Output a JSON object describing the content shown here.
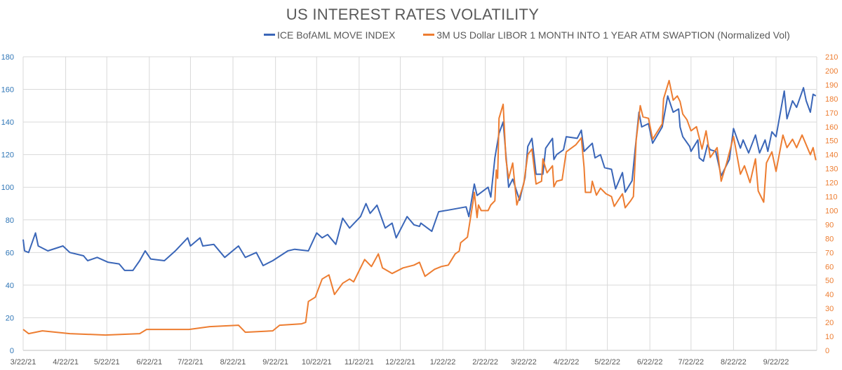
{
  "chart_data": {
    "type": "line",
    "title": "US INTEREST RATES VOLATILITY",
    "legend_position": "top-right",
    "grid": true,
    "x_axis": {
      "tick_labels": [
        "3/22/21",
        "4/22/21",
        "5/22/21",
        "6/22/21",
        "7/22/21",
        "8/22/21",
        "9/22/21",
        "10/22/21",
        "11/22/21",
        "12/22/21",
        "1/22/22",
        "2/22/22",
        "3/22/22",
        "4/22/22",
        "5/22/22",
        "6/22/22",
        "7/22/22",
        "8/22/22",
        "9/22/22"
      ]
    },
    "y_axis_left": {
      "range": [
        0,
        180
      ],
      "ticks": [
        "0",
        "20",
        "40",
        "60",
        "80",
        "100",
        "120",
        "140",
        "160",
        "180"
      ],
      "color": "#2e75b6"
    },
    "y_axis_right": {
      "range": [
        0,
        210
      ],
      "ticks": [
        "0",
        "10",
        "20",
        "30",
        "40",
        "50",
        "60",
        "70",
        "80",
        "90",
        "100",
        "110",
        "120",
        "130",
        "140",
        "150",
        "160",
        "170",
        "180",
        "190",
        "200",
        "210"
      ],
      "color": "#ed7d31"
    },
    "series": [
      {
        "name": "ICE BofAML MOVE INDEX",
        "axis": "left",
        "color": "#3a66b8",
        "points": [
          [
            "3/22/21",
            68
          ],
          [
            "3/23/21",
            61
          ],
          [
            "3/26/21",
            60
          ],
          [
            "3/31/21",
            72
          ],
          [
            "4/2/21",
            64
          ],
          [
            "4/9/21",
            61
          ],
          [
            "4/20/21",
            64
          ],
          [
            "4/25/21",
            60
          ],
          [
            "5/5/21",
            58
          ],
          [
            "5/8/21",
            55
          ],
          [
            "5/15/21",
            57
          ],
          [
            "5/23/21",
            54
          ],
          [
            "5/31/21",
            53
          ],
          [
            "6/4/21",
            49
          ],
          [
            "6/10/21",
            49
          ],
          [
            "6/15/21",
            55
          ],
          [
            "6/19/21",
            61
          ],
          [
            "6/23/21",
            56
          ],
          [
            "7/3/21",
            55
          ],
          [
            "7/11/21",
            61
          ],
          [
            "7/20/21",
            69
          ],
          [
            "7/22/21",
            64
          ],
          [
            "7/29/21",
            69
          ],
          [
            "7/31/21",
            64
          ],
          [
            "8/8/21",
            65
          ],
          [
            "8/16/21",
            57
          ],
          [
            "8/26/21",
            64
          ],
          [
            "8/31/21",
            57
          ],
          [
            "9/8/21",
            60
          ],
          [
            "9/13/21",
            52
          ],
          [
            "9/20/21",
            55
          ],
          [
            "10/1/21",
            61
          ],
          [
            "10/6/21",
            62
          ],
          [
            "10/16/21",
            61
          ],
          [
            "10/22/21",
            72
          ],
          [
            "10/26/21",
            69
          ],
          [
            "10/30/21",
            71
          ],
          [
            "11/5/21",
            65
          ],
          [
            "11/10/21",
            81
          ],
          [
            "11/15/21",
            75
          ],
          [
            "11/23/21",
            82
          ],
          [
            "11/27/21",
            90
          ],
          [
            "11/30/21",
            84
          ],
          [
            "12/5/21",
            89
          ],
          [
            "12/11/21",
            75
          ],
          [
            "12/16/21",
            78
          ],
          [
            "12/19/21",
            69
          ],
          [
            "12/27/21",
            82
          ],
          [
            "1/1/22",
            77
          ],
          [
            "1/5/22",
            76
          ],
          [
            "1/6/22",
            78
          ],
          [
            "1/14/22",
            73
          ],
          [
            "1/19/22",
            85
          ],
          [
            "1/26/22",
            86
          ],
          [
            "2/8/22",
            88
          ],
          [
            "2/10/22",
            82
          ],
          [
            "2/14/22",
            102
          ],
          [
            "2/16/22",
            95
          ],
          [
            "2/24/22",
            100
          ],
          [
            "2/26/22",
            94
          ],
          [
            "3/1/22",
            118
          ],
          [
            "3/4/22",
            133
          ],
          [
            "3/7/22",
            140
          ],
          [
            "3/11/22",
            100
          ],
          [
            "3/14/22",
            105
          ],
          [
            "3/19/22",
            92
          ],
          [
            "3/23/22",
            106
          ],
          [
            "3/25/22",
            125
          ],
          [
            "3/28/22",
            130
          ],
          [
            "3/31/22",
            108
          ],
          [
            "4/5/22",
            108
          ],
          [
            "4/7/22",
            124
          ],
          [
            "4/12/22",
            130
          ],
          [
            "4/13/22",
            117
          ],
          [
            "4/15/22",
            120
          ],
          [
            "4/20/22",
            123
          ],
          [
            "4/22/22",
            131
          ],
          [
            "4/30/22",
            130
          ],
          [
            "5/3/22",
            135
          ],
          [
            "5/5/22",
            122
          ],
          [
            "5/11/22",
            127
          ],
          [
            "5/13/22",
            118
          ],
          [
            "5/17/22",
            120
          ],
          [
            "5/20/22",
            112
          ],
          [
            "5/25/22",
            111
          ],
          [
            "5/28/22",
            99
          ],
          [
            "6/2/22",
            109
          ],
          [
            "6/4/22",
            97
          ],
          [
            "6/9/22",
            104
          ],
          [
            "6/11/22",
            121
          ],
          [
            "6/14/22",
            146
          ],
          [
            "6/16/22",
            137
          ],
          [
            "6/21/22",
            139
          ],
          [
            "6/24/22",
            127
          ],
          [
            "7/1/22",
            137
          ],
          [
            "7/5/22",
            156
          ],
          [
            "7/7/22",
            151
          ],
          [
            "7/9/22",
            146
          ],
          [
            "7/13/22",
            148
          ],
          [
            "7/14/22",
            137
          ],
          [
            "7/16/22",
            131
          ],
          [
            "7/21/22",
            125
          ],
          [
            "7/22/22",
            122
          ],
          [
            "7/27/22",
            129
          ],
          [
            "7/28/22",
            118
          ],
          [
            "7/31/22",
            116
          ],
          [
            "8/3/22",
            126
          ],
          [
            "8/5/22",
            123
          ],
          [
            "8/9/22",
            122
          ],
          [
            "8/13/22",
            107
          ],
          [
            "8/19/22",
            117
          ],
          [
            "8/22/22",
            136
          ],
          [
            "8/27/22",
            124
          ],
          [
            "8/29/22",
            129
          ],
          [
            "9/2/22",
            121
          ],
          [
            "9/7/22",
            132
          ],
          [
            "9/10/22",
            121
          ],
          [
            "9/14/22",
            129
          ],
          [
            "9/16/22",
            122
          ],
          [
            "9/19/22",
            134
          ],
          [
            "9/22/22",
            131
          ],
          [
            "9/28/22",
            159
          ],
          [
            "9/30/22",
            142
          ],
          [
            "10/4/22",
            153
          ],
          [
            "10/7/22",
            149
          ],
          [
            "10/12/22",
            161
          ],
          [
            "10/14/22",
            153
          ],
          [
            "10/17/22",
            146
          ],
          [
            "10/19/22",
            157
          ],
          [
            "10/21/22",
            156
          ]
        ]
      },
      {
        "name": "3M US Dollar LIBOR 1 MONTH INTO 1 YEAR ATM SWAPTION (Normalized Vol)",
        "axis": "right",
        "color": "#ed7d31",
        "points": [
          [
            "3/22/21",
            15
          ],
          [
            "3/26/21",
            12
          ],
          [
            "4/5/21",
            14
          ],
          [
            "4/25/21",
            12
          ],
          [
            "5/21/21",
            11
          ],
          [
            "6/15/21",
            12
          ],
          [
            "6/20/21",
            15
          ],
          [
            "7/21/21",
            15
          ],
          [
            "8/5/21",
            17
          ],
          [
            "8/26/21",
            18
          ],
          [
            "8/31/21",
            13
          ],
          [
            "9/20/21",
            14
          ],
          [
            "9/25/21",
            18
          ],
          [
            "10/11/21",
            19
          ],
          [
            "10/14/21",
            20
          ],
          [
            "10/16/21",
            35
          ],
          [
            "10/21/21",
            38
          ],
          [
            "10/26/21",
            51
          ],
          [
            "10/31/21",
            54
          ],
          [
            "11/4/21",
            40
          ],
          [
            "11/10/21",
            48
          ],
          [
            "11/15/21",
            51
          ],
          [
            "11/18/21",
            49
          ],
          [
            "11/26/21",
            65
          ],
          [
            "12/1/21",
            60
          ],
          [
            "12/6/21",
            69
          ],
          [
            "12/9/21",
            59
          ],
          [
            "12/16/21",
            55
          ],
          [
            "12/24/21",
            59
          ],
          [
            "1/1/22",
            61
          ],
          [
            "1/5/22",
            63
          ],
          [
            "1/9/22",
            53
          ],
          [
            "1/16/22",
            58
          ],
          [
            "1/21/22",
            60
          ],
          [
            "1/26/22",
            61
          ],
          [
            "1/31/22",
            69
          ],
          [
            "2/3/22",
            71
          ],
          [
            "2/4/22",
            77
          ],
          [
            "2/9/22",
            81
          ],
          [
            "2/13/22",
            106
          ],
          [
            "2/14/22",
            113
          ],
          [
            "2/16/22",
            95
          ],
          [
            "2/17/22",
            104
          ],
          [
            "2/19/22",
            100
          ],
          [
            "2/24/22",
            100
          ],
          [
            "2/26/22",
            104
          ],
          [
            "3/1/22",
            107
          ],
          [
            "3/2/22",
            129
          ],
          [
            "3/3/22",
            123
          ],
          [
            "3/4/22",
            166
          ],
          [
            "3/7/22",
            176
          ],
          [
            "3/9/22",
            137
          ],
          [
            "3/11/22",
            123
          ],
          [
            "3/14/22",
            134
          ],
          [
            "3/17/22",
            104
          ],
          [
            "3/22/22",
            119
          ],
          [
            "3/25/22",
            140
          ],
          [
            "3/28/22",
            144
          ],
          [
            "3/31/22",
            119
          ],
          [
            "4/4/22",
            121
          ],
          [
            "4/5/22",
            137
          ],
          [
            "4/8/22",
            127
          ],
          [
            "4/12/22",
            132
          ],
          [
            "4/13/22",
            117
          ],
          [
            "4/15/22",
            121
          ],
          [
            "4/19/22",
            122
          ],
          [
            "4/22/22",
            142
          ],
          [
            "4/29/22",
            147
          ],
          [
            "5/3/22",
            152
          ],
          [
            "5/5/22",
            131
          ],
          [
            "5/6/22",
            113
          ],
          [
            "5/10/22",
            113
          ],
          [
            "5/11/22",
            121
          ],
          [
            "5/14/22",
            111
          ],
          [
            "5/17/22",
            116
          ],
          [
            "5/21/22",
            112
          ],
          [
            "5/25/22",
            110
          ],
          [
            "5/27/22",
            103
          ],
          [
            "6/2/22",
            112
          ],
          [
            "6/4/22",
            102
          ],
          [
            "6/8/22",
            107
          ],
          [
            "6/10/22",
            110
          ],
          [
            "6/12/22",
            150
          ],
          [
            "6/15/22",
            175
          ],
          [
            "6/17/22",
            167
          ],
          [
            "6/21/22",
            166
          ],
          [
            "6/24/22",
            151
          ],
          [
            "7/1/22",
            162
          ],
          [
            "7/2/22",
            180
          ],
          [
            "7/6/22",
            193
          ],
          [
            "7/9/22",
            179
          ],
          [
            "7/12/22",
            182
          ],
          [
            "7/14/22",
            178
          ],
          [
            "7/16/22",
            169
          ],
          [
            "7/19/22",
            165
          ],
          [
            "7/22/22",
            157
          ],
          [
            "7/26/22",
            160
          ],
          [
            "7/30/22",
            144
          ],
          [
            "8/2/22",
            157
          ],
          [
            "8/5/22",
            138
          ],
          [
            "8/10/22",
            145
          ],
          [
            "8/13/22",
            121
          ],
          [
            "8/17/22",
            134
          ],
          [
            "8/22/22",
            153
          ],
          [
            "8/27/22",
            126
          ],
          [
            "8/30/22",
            132
          ],
          [
            "9/3/22",
            120
          ],
          [
            "9/7/22",
            137
          ],
          [
            "9/9/22",
            114
          ],
          [
            "9/13/22",
            106
          ],
          [
            "9/15/22",
            134
          ],
          [
            "9/19/22",
            142
          ],
          [
            "9/22/22",
            128
          ],
          [
            "9/27/22",
            154
          ],
          [
            "9/30/22",
            145
          ],
          [
            "10/4/22",
            151
          ],
          [
            "10/7/22",
            145
          ],
          [
            "10/11/22",
            154
          ],
          [
            "10/17/22",
            140
          ],
          [
            "10/19/22",
            145
          ],
          [
            "10/21/22",
            136
          ]
        ]
      }
    ]
  }
}
